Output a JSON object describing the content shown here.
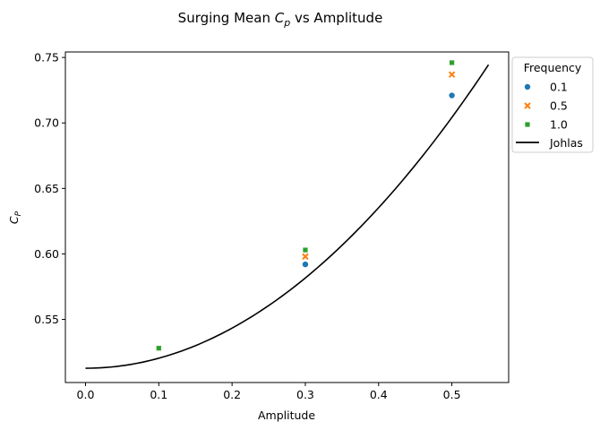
{
  "chart_data": {
    "type": "scatter",
    "title": {
      "prefix": "Surging Mean ",
      "sym": "C",
      "sub": "p",
      "suffix": " vs Amplitude"
    },
    "xlabel": "Amplitude",
    "ylabel": {
      "sym": "C",
      "sub": "P"
    },
    "xlim": [
      -0.0275,
      0.5775
    ],
    "ylim": [
      0.5018,
      0.7542
    ],
    "xticks": [
      0.0,
      0.1,
      0.2,
      0.3,
      0.4,
      0.5
    ],
    "xtick_labels": [
      "0.0",
      "0.1",
      "0.2",
      "0.3",
      "0.4",
      "0.5"
    ],
    "yticks": [
      0.55,
      0.6,
      0.65,
      0.7,
      0.75
    ],
    "ytick_labels": [
      "0.55",
      "0.60",
      "0.65",
      "0.70",
      "0.75"
    ],
    "legend": {
      "title": "Frequency",
      "placement": "outside-top-right"
    },
    "series": [
      {
        "name": "0.1",
        "marker": "circle",
        "color": "#1f77b4",
        "x": [
          0.1,
          0.3,
          0.5
        ],
        "y": [
          0.528,
          0.592,
          0.721
        ]
      },
      {
        "name": "0.5",
        "marker": "x",
        "color": "#ff7f0e",
        "x": [
          0.1,
          0.3,
          0.5
        ],
        "y": [
          0.528,
          0.598,
          0.737
        ]
      },
      {
        "name": "1.0",
        "marker": "square",
        "color": "#2ca02c",
        "x": [
          0.1,
          0.3,
          0.5
        ],
        "y": [
          0.528,
          0.603,
          0.746
        ]
      }
    ],
    "line": {
      "name": "Johlas",
      "color": "#000000",
      "x_range": [
        0.0,
        0.55
      ],
      "formula": "0.5127 + 0.766*x^2"
    },
    "grid": false
  }
}
